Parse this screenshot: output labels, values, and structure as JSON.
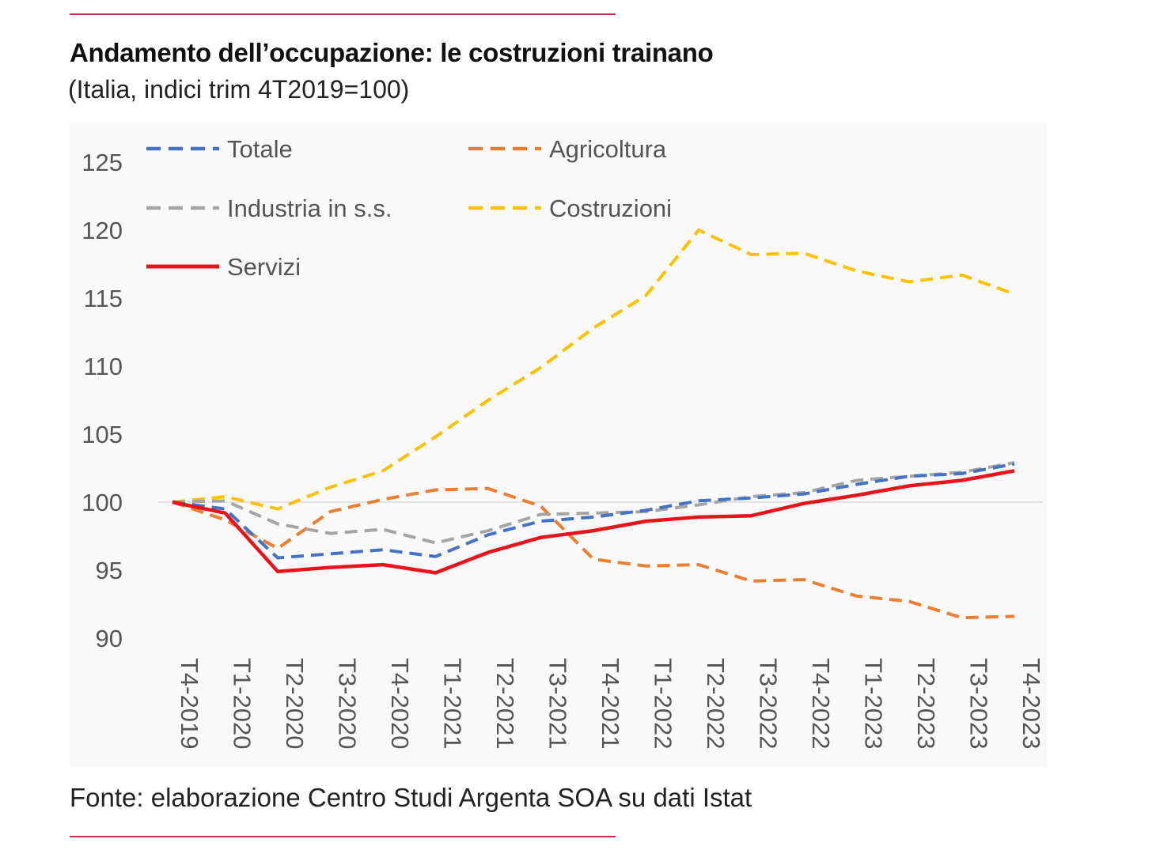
{
  "header": {
    "title": "Andamento dell’occupazione: le costruzioni trainano",
    "subtitle": "(Italia, indici trim 4T2019=100)"
  },
  "footer": {
    "source": "Fonte: elaborazione Centro Studi Argenta SOA su dati Istat"
  },
  "colors": {
    "accent_rule": "#c4304a",
    "Totale": "#4472c4",
    "Agricoltura": "#ed7d31",
    "Industria in s.s.": "#a5a5a5",
    "Costruzioni": "#ffc000",
    "Servizi": "#e8141b"
  },
  "chart_data": {
    "type": "line",
    "title": "",
    "xlabel": "",
    "ylabel": "",
    "ylim": [
      90,
      125
    ],
    "yticks": [
      90,
      95,
      100,
      105,
      110,
      115,
      120,
      125
    ],
    "grid": "single reference line at 100",
    "legend_position": "top-left, two columns",
    "categories": [
      "T4-2019",
      "T1-2020",
      "T2-2020",
      "T3-2020",
      "T4-2020",
      "T1-2021",
      "T2-2021",
      "T3-2021",
      "T4-2021",
      "T1-2022",
      "T2-2022",
      "T3-2022",
      "T4-2022",
      "T1-2023",
      "T2-2023",
      "T3-2023",
      "T4-2023"
    ],
    "series": [
      {
        "name": "Totale",
        "style": "dashed",
        "values": [
          100,
          99.5,
          95.9,
          96.2,
          96.5,
          96.0,
          97.6,
          98.6,
          98.9,
          99.4,
          100.1,
          100.3,
          100.6,
          101.3,
          101.9,
          102.1,
          102.8
        ]
      },
      {
        "name": "Agricoltura",
        "style": "dashed",
        "values": [
          100,
          98.7,
          96.6,
          99.3,
          100.2,
          100.9,
          101.0,
          99.7,
          95.8,
          95.3,
          95.4,
          94.2,
          94.3,
          93.1,
          92.7,
          91.5,
          91.6
        ]
      },
      {
        "name": "Industria in s.s.",
        "style": "dashed",
        "values": [
          100,
          100.1,
          98.4,
          97.7,
          98.0,
          97.0,
          97.9,
          99.1,
          99.2,
          99.3,
          99.8,
          100.4,
          100.7,
          101.6,
          101.9,
          102.2,
          102.9
        ]
      },
      {
        "name": "Costruzioni",
        "style": "dashed",
        "values": [
          100,
          100.4,
          99.5,
          101.1,
          102.3,
          104.8,
          107.5,
          109.9,
          112.8,
          115.2,
          120.0,
          118.2,
          118.3,
          117.0,
          116.2,
          116.7,
          115.3
        ]
      },
      {
        "name": "Servizi",
        "style": "solid",
        "values": [
          100,
          99.2,
          94.9,
          95.2,
          95.4,
          94.8,
          96.3,
          97.4,
          97.9,
          98.6,
          98.9,
          99.0,
          99.9,
          100.5,
          101.2,
          101.6,
          102.3
        ]
      }
    ]
  }
}
